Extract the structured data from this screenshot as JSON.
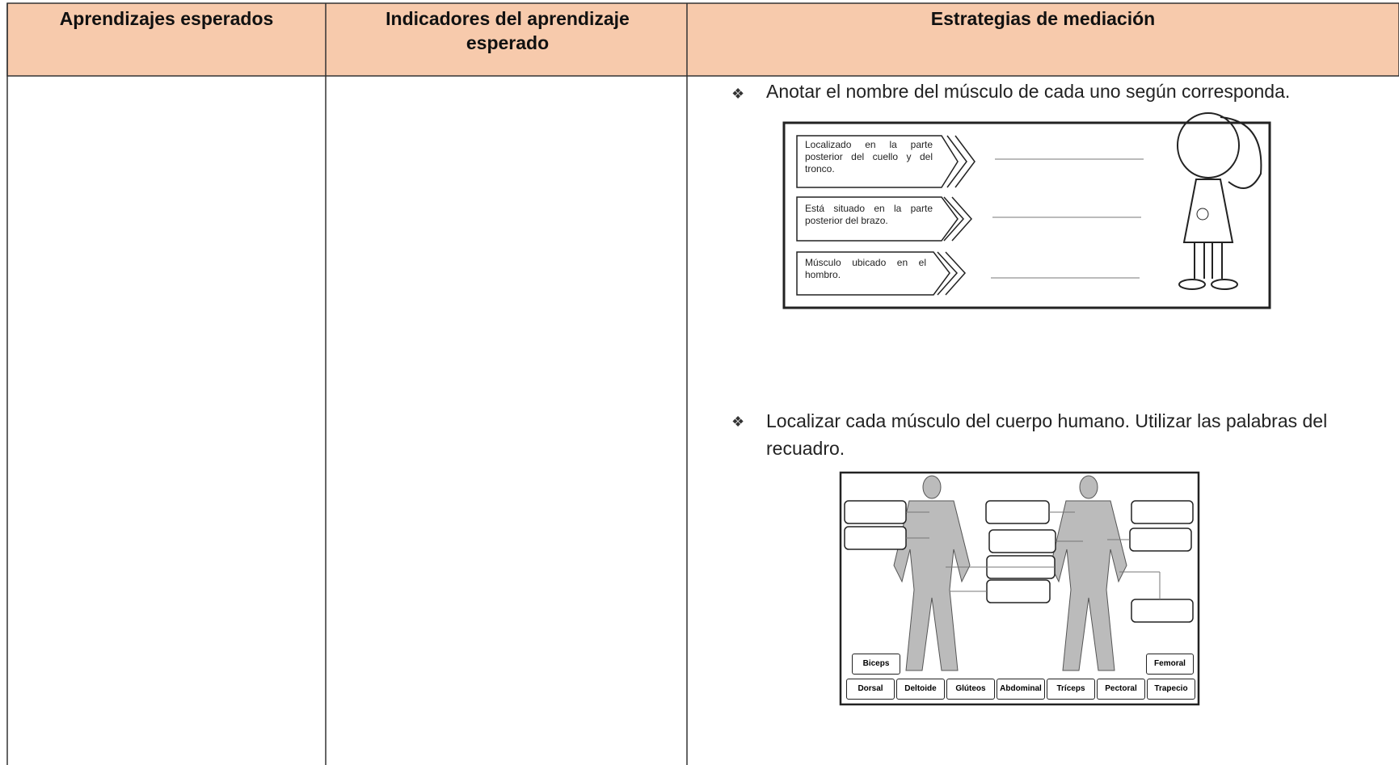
{
  "table": {
    "header": [
      "Aprendizajes esperados",
      "Indicadores del aprendizaje esperado",
      "Estrategias de mediación"
    ]
  },
  "bullets": [
    {
      "text": "Anotar el nombre del músculo de cada uno según corresponda.",
      "clues": [
        "Localizado en la parte posterior del cuello y del tronco.",
        "Está situado en la parte posterior del brazo.",
        "Músculo ubicado en el hombro."
      ]
    },
    {
      "text": "Localizar cada músculo del cuerpo humano. Utilizar las palabras del recuadro.",
      "word_bank": [
        "Biceps",
        "Femoral",
        "Dorsal",
        "Deltoide",
        "Glúteos",
        "Abdominal",
        "Tríceps",
        "Pectoral",
        "Trapecio"
      ]
    }
  ]
}
